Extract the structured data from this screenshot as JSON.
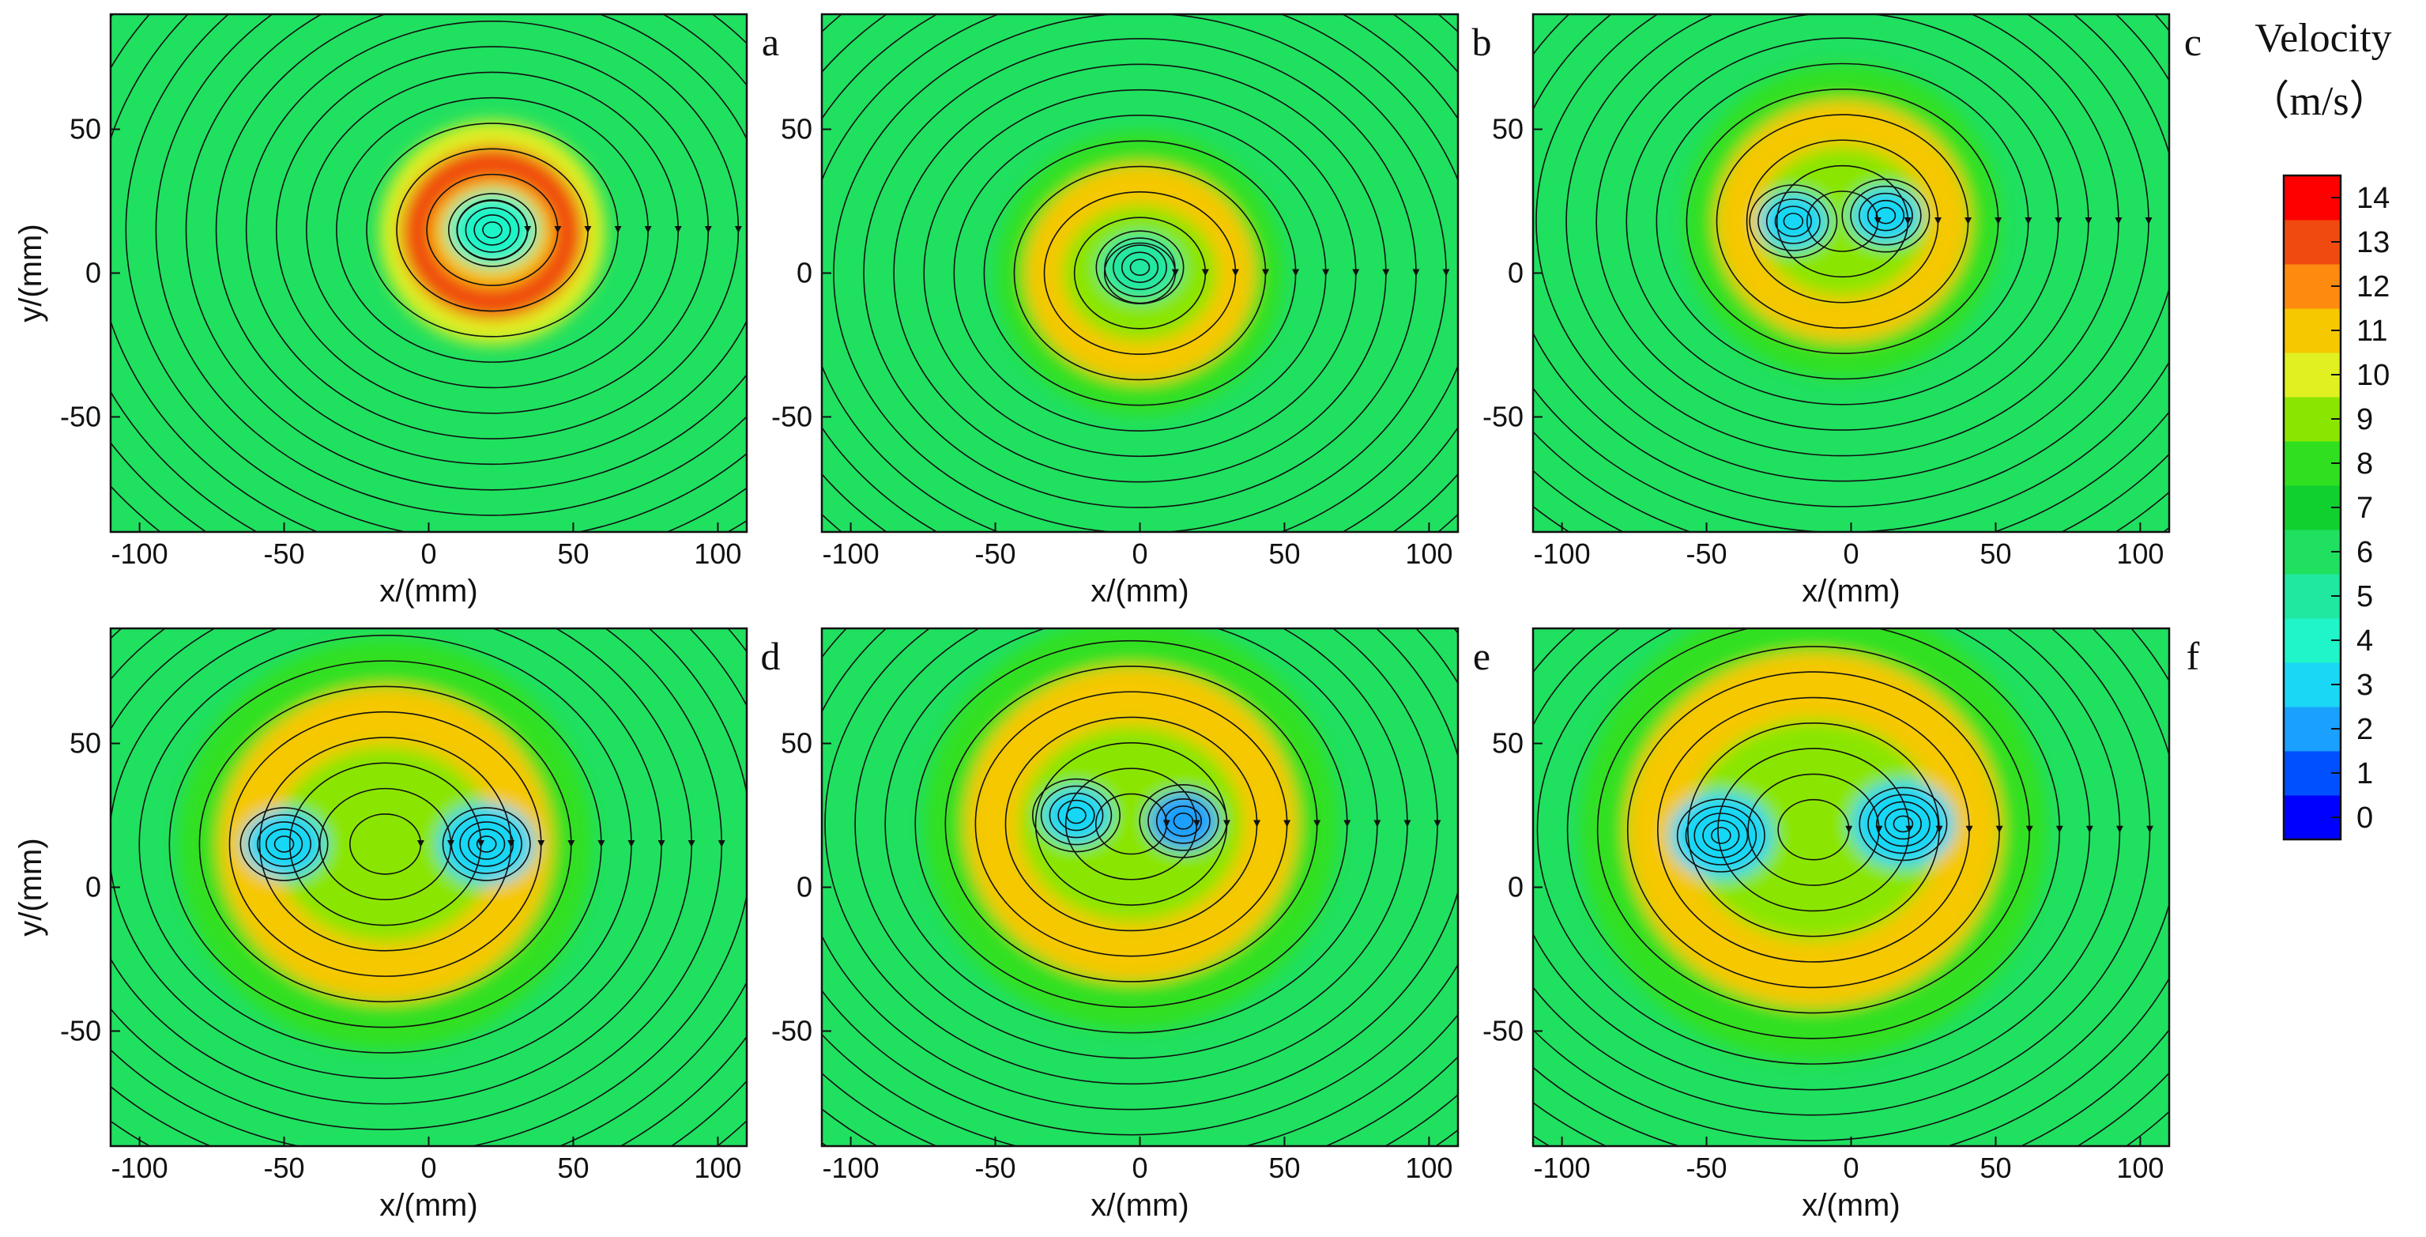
{
  "chart_data": {
    "type": "heatmap",
    "panels": [
      {
        "letter": "a",
        "x_label": "x/(mm)",
        "y_label": "y/(mm)",
        "vortices": [
          {
            "x": 22,
            "y": 15,
            "ry": 13,
            "core_speed": 4
          }
        ],
        "ring": {
          "x": 22,
          "y": 14,
          "r": 30,
          "speed": 12.5
        },
        "streamline_center": {
          "x": 22,
          "y": 15
        }
      },
      {
        "letter": "b",
        "x_label": "x/(mm)",
        "y_label": "",
        "vortices": [
          {
            "x": 0,
            "y": 2,
            "ry": 12,
            "core_speed": 5
          }
        ],
        "ring": {
          "x": 0,
          "y": 0,
          "r": 38,
          "speed": 11
        },
        "streamline_center": {
          "x": 0,
          "y": 0
        }
      },
      {
        "letter": "c",
        "x_label": "x/(mm)",
        "y_label": "",
        "vortices": [
          {
            "x": -20,
            "y": 18,
            "ry": 10,
            "core_speed": 3
          },
          {
            "x": 12,
            "y": 20,
            "ry": 10,
            "core_speed": 3
          }
        ],
        "ring": {
          "x": -3,
          "y": 18,
          "r": 42,
          "speed": 11
        },
        "streamline_center": {
          "x": -3,
          "y": 18
        }
      },
      {
        "letter": "d",
        "x_label": "x/(mm)",
        "y_label": "y/(mm)",
        "vortices": [
          {
            "x": -50,
            "y": 15,
            "ry": 12,
            "core_speed": 3
          },
          {
            "x": 20,
            "y": 15,
            "ry": 14,
            "core_speed": 3
          }
        ],
        "ring": {
          "x": -15,
          "y": 15,
          "r": 55,
          "speed": 11
        },
        "streamline_center": {
          "x": -15,
          "y": 15
        }
      },
      {
        "letter": "e",
        "x_label": "x/(mm)",
        "y_label": "",
        "vortices": [
          {
            "x": -22,
            "y": 25,
            "ry": 10,
            "core_speed": 3
          },
          {
            "x": 15,
            "y": 23,
            "ry": 10,
            "core_speed": 2
          }
        ],
        "ring": {
          "x": -3,
          "y": 22,
          "r": 55,
          "speed": 11
        },
        "streamline_center": {
          "x": -3,
          "y": 22
        }
      },
      {
        "letter": "f",
        "x_label": "x/(mm)",
        "y_label": "",
        "vortices": [
          {
            "x": -45,
            "y": 18,
            "ry": 15,
            "core_speed": 3
          },
          {
            "x": 18,
            "y": 22,
            "ry": 15,
            "core_speed": 3
          }
        ],
        "ring": {
          "x": -13,
          "y": 20,
          "r": 62,
          "speed": 11
        },
        "streamline_center": {
          "x": -13,
          "y": 20
        }
      }
    ],
    "xlim": [
      -110,
      110
    ],
    "ylim": [
      -90,
      90
    ],
    "x_ticks": [
      -100,
      -50,
      0,
      50,
      100
    ],
    "y_ticks": [
      -50,
      0,
      50
    ],
    "colorbar": {
      "title_line1": "Velocity",
      "title_line2": "（m/s）",
      "ticks": [
        0,
        1,
        2,
        3,
        4,
        5,
        6,
        7,
        8,
        9,
        10,
        11,
        12,
        13,
        14
      ],
      "colors": [
        "#0000ff",
        "#0050ff",
        "#1aa0ff",
        "#19d7f5",
        "#1ff5c8",
        "#20e8a0",
        "#20e060",
        "#10d030",
        "#30e020",
        "#8ae600",
        "#e0f020",
        "#f5c800",
        "#ff8a10",
        "#f04a10",
        "#ff0000"
      ]
    },
    "background_speed": 6
  }
}
